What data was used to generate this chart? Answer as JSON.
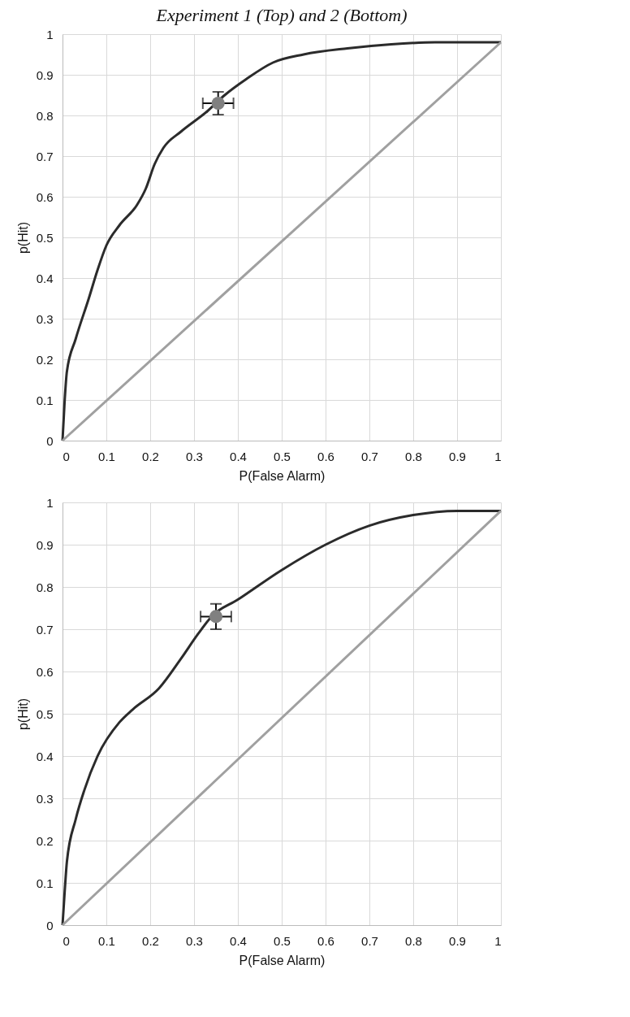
{
  "chart_data": [
    {
      "type": "line",
      "title": "Experiment 1 (Top) and 2 (Bottom)",
      "xlabel": "P(False Alarm)",
      "ylabel": "p(Hit)",
      "xlim": [
        0,
        1
      ],
      "ylim": [
        0,
        1
      ],
      "xticks": [
        0,
        0.1,
        0.2,
        0.3,
        0.4,
        0.5,
        0.6,
        0.7,
        0.8,
        0.9,
        1
      ],
      "yticks": [
        0,
        0.1,
        0.2,
        0.3,
        0.4,
        0.5,
        0.6,
        0.7,
        0.8,
        0.9,
        1
      ],
      "grid": true,
      "series": [
        {
          "color": "#2b2b2b",
          "x": [
            0,
            0.005,
            0.01,
            0.03,
            0.06,
            0.08,
            0.1,
            0.13,
            0.17,
            0.19,
            0.21,
            0.23,
            0.27,
            0.33,
            0.37,
            0.42,
            0.48,
            0.55,
            0.65,
            0.75,
            0.85,
            1
          ],
          "values": [
            0,
            0.1,
            0.17,
            0.25,
            0.35,
            0.42,
            0.48,
            0.53,
            0.58,
            0.62,
            0.68,
            0.72,
            0.76,
            0.81,
            0.85,
            0.89,
            0.93,
            0.95,
            0.965,
            0.975,
            0.98,
            0.98
          ]
        },
        {
          "color": "#a0a0a0",
          "x": [
            0,
            1
          ],
          "values": [
            0,
            0.98
          ]
        },
        {
          "type": "scatter",
          "marker": "circle",
          "color": "#808080",
          "x": [
            0.355
          ],
          "values": [
            0.83
          ],
          "errors": [
            0.028
          ],
          "xerrors": [
            0.035
          ]
        }
      ]
    },
    {
      "type": "line",
      "xlabel": "P(False Alarm)",
      "ylabel": "p(Hit)",
      "xlim": [
        0,
        1
      ],
      "ylim": [
        0,
        1
      ],
      "xticks": [
        0,
        0.1,
        0.2,
        0.3,
        0.4,
        0.5,
        0.6,
        0.7,
        0.8,
        0.9,
        1
      ],
      "yticks": [
        0,
        0.1,
        0.2,
        0.3,
        0.4,
        0.5,
        0.6,
        0.7,
        0.8,
        0.9,
        1
      ],
      "grid": true,
      "series": [
        {
          "color": "#2b2b2b",
          "x": [
            0,
            0.005,
            0.01,
            0.03,
            0.05,
            0.08,
            0.13,
            0.16,
            0.22,
            0.27,
            0.31,
            0.34,
            0.4,
            0.5,
            0.6,
            0.7,
            0.8,
            0.9,
            1
          ],
          "values": [
            0,
            0.08,
            0.15,
            0.25,
            0.32,
            0.4,
            0.48,
            0.51,
            0.56,
            0.63,
            0.69,
            0.73,
            0.77,
            0.84,
            0.9,
            0.945,
            0.97,
            0.98,
            0.98
          ]
        },
        {
          "color": "#a0a0a0",
          "x": [
            0,
            1
          ],
          "values": [
            0,
            0.98
          ]
        },
        {
          "type": "scatter",
          "marker": "circle",
          "color": "#808080",
          "x": [
            0.35
          ],
          "values": [
            0.73
          ],
          "errors": [
            0.03
          ],
          "xerrors": [
            0.035
          ]
        }
      ]
    }
  ]
}
